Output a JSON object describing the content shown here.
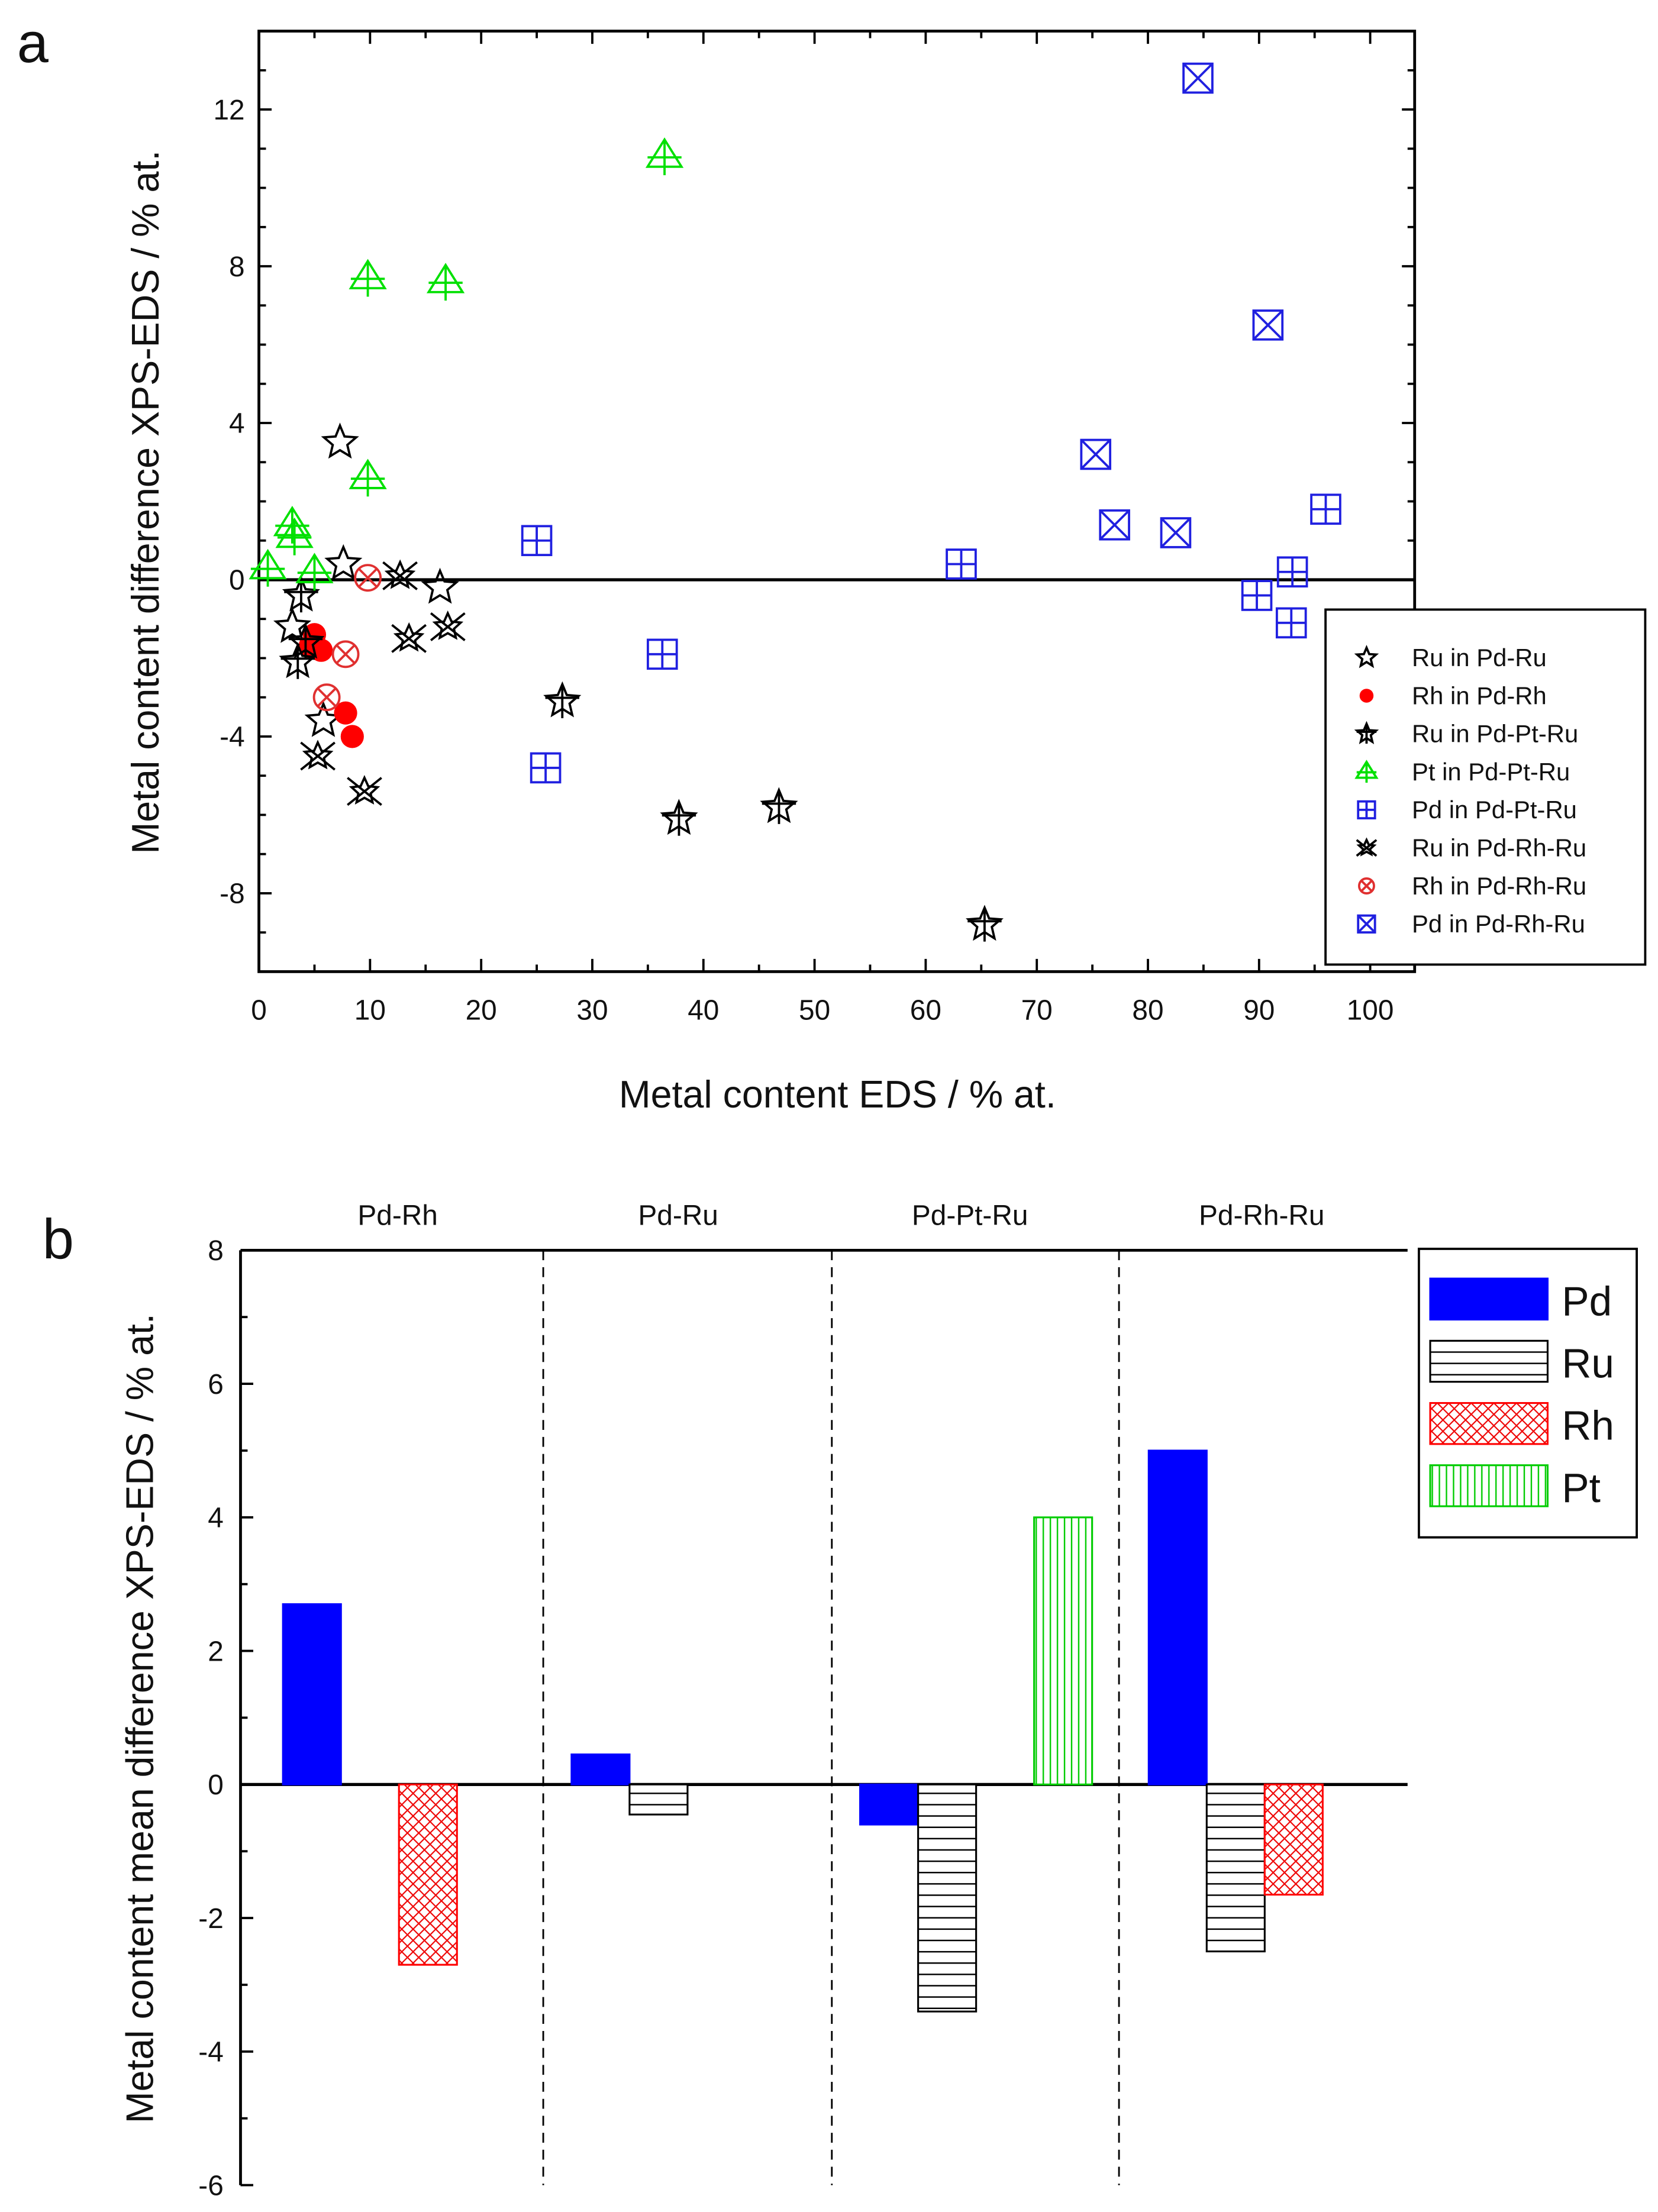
{
  "chart_data": [
    {
      "panel": "a",
      "type": "scatter",
      "xlabel": "Metal content EDS / % at.",
      "ylabel": "Metal content difference XPS-EDS / % at.",
      "xlim": [
        0,
        104
      ],
      "ylim": [
        -10,
        14
      ],
      "xticks": [
        0,
        10,
        20,
        30,
        40,
        50,
        60,
        70,
        80,
        90,
        100
      ],
      "yticks": [
        -8,
        -4,
        0,
        4,
        8,
        12
      ],
      "zero_line": true,
      "legend_position": "right-middle",
      "series": [
        {
          "name": "Ru in Pd-Ru",
          "marker": "open-star",
          "color": "#000000",
          "points": [
            [
              7.3,
              3.5
            ],
            [
              7.6,
              0.4
            ],
            [
              16.3,
              -0.2
            ],
            [
              5.8,
              -3.6
            ],
            [
              3.0,
              -1.2
            ]
          ]
        },
        {
          "name": "Rh in Pd-Rh",
          "marker": "filled-circle",
          "color": "#ff0000",
          "points": [
            [
              5.0,
              -1.4
            ],
            [
              5.6,
              -1.8
            ],
            [
              7.8,
              -3.4
            ],
            [
              8.4,
              -4.0
            ],
            [
              4.6,
              -1.7
            ]
          ]
        },
        {
          "name": "Ru in Pd-Pt-Ru",
          "marker": "crossed-star",
          "color": "#000000",
          "points": [
            [
              27.3,
              -3.1
            ],
            [
              37.8,
              -6.1
            ],
            [
              46.8,
              -5.8
            ],
            [
              65.3,
              -8.8
            ],
            [
              3.8,
              -0.4
            ],
            [
              3.5,
              -2.1
            ],
            [
              4.2,
              -1.6
            ]
          ]
        },
        {
          "name": "Pt in Pd-Pt-Ru",
          "marker": "crossed-triangle",
          "color": "#00e000",
          "points": [
            [
              36.5,
              10.8
            ],
            [
              9.8,
              7.7
            ],
            [
              16.8,
              7.6
            ],
            [
              9.8,
              2.6
            ],
            [
              3.0,
              1.4
            ],
            [
              3.2,
              1.1
            ],
            [
              0.8,
              0.3
            ],
            [
              5.0,
              0.2
            ]
          ]
        },
        {
          "name": "Pd in Pd-Pt-Ru",
          "marker": "square-plus",
          "color": "#2020e0",
          "points": [
            [
              25.0,
              1.0
            ],
            [
              36.3,
              -1.9
            ],
            [
              25.8,
              -4.8
            ],
            [
              63.2,
              0.4
            ],
            [
              93.0,
              0.2
            ],
            [
              92.9,
              -1.1
            ],
            [
              96.0,
              1.8
            ],
            [
              89.8,
              -0.4
            ]
          ]
        },
        {
          "name": "Ru in Pd-Rh-Ru",
          "marker": "asterisk-star",
          "color": "#000000",
          "points": [
            [
              12.7,
              0.1
            ],
            [
              13.5,
              -1.5
            ],
            [
              17.0,
              -1.2
            ],
            [
              5.3,
              -4.5
            ],
            [
              9.5,
              -5.4
            ]
          ]
        },
        {
          "name": "Rh in Pd-Rh-Ru",
          "marker": "circle-x",
          "color": "#e03030",
          "points": [
            [
              9.8,
              0.05
            ],
            [
              7.8,
              -1.9
            ],
            [
              6.1,
              -3.0
            ]
          ]
        },
        {
          "name": "Pd in Pd-Rh-Ru",
          "marker": "square-x",
          "color": "#2020e0",
          "points": [
            [
              84.5,
              12.8
            ],
            [
              90.8,
              6.5
            ],
            [
              75.3,
              3.2
            ],
            [
              77.0,
              1.4
            ],
            [
              82.5,
              1.2
            ]
          ]
        }
      ]
    },
    {
      "panel": "b",
      "type": "bar",
      "xlabel": "",
      "ylabel": "Metal content mean difference XPS-EDS / % at.",
      "ylim": [
        -6,
        8
      ],
      "yticks": [
        -6,
        -4,
        -2,
        0,
        2,
        4,
        6,
        8
      ],
      "categories": [
        "Pd-Rh",
        "Pd-Ru",
        "Pd-Pt-Ru",
        "Pd-Rh-Ru"
      ],
      "legend_position": "top-right outside",
      "series": [
        {
          "name": "Pd",
          "fill": "solid",
          "color": "#0000ff",
          "values": [
            2.7,
            0.45,
            -0.6,
            5.0
          ]
        },
        {
          "name": "Ru",
          "fill": "horizontal-lines",
          "color": "#000000",
          "values": [
            null,
            -0.45,
            -3.4,
            -2.5
          ]
        },
        {
          "name": "Rh",
          "fill": "crosshatch",
          "color": "#ff0000",
          "values": [
            -2.7,
            null,
            null,
            -1.65
          ]
        },
        {
          "name": "Pt",
          "fill": "vertical-lines",
          "color": "#00cc00",
          "values": [
            null,
            null,
            4.0,
            null
          ]
        }
      ]
    }
  ]
}
